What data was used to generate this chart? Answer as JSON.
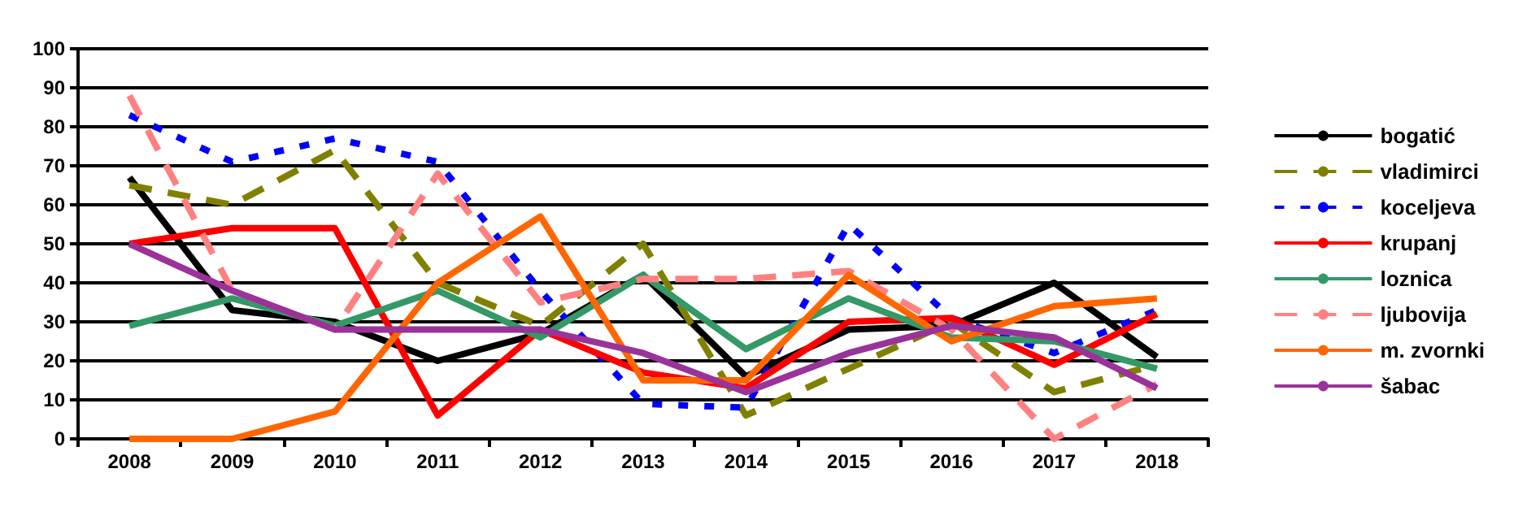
{
  "chart_data": {
    "type": "line",
    "categories": [
      "2008",
      "2009",
      "2010",
      "2011",
      "2012",
      "2013",
      "2014",
      "2015",
      "2016",
      "2017",
      "2018"
    ],
    "ylim": [
      0,
      100
    ],
    "yticks": [
      0,
      10,
      20,
      30,
      40,
      50,
      60,
      70,
      80,
      90,
      100
    ],
    "grid": "y",
    "legend": "right",
    "marker": "none",
    "series": [
      {
        "name": "bogatić",
        "color": "#000000",
        "line_style": "solid",
        "values": [
          67,
          33,
          30,
          20,
          27,
          42,
          16,
          28,
          29,
          40,
          21
        ]
      },
      {
        "name": "vladimirci",
        "color": "#808000",
        "line_style": "dashed",
        "values": [
          65,
          60,
          74,
          40,
          29,
          50,
          6,
          18,
          30,
          12,
          19
        ]
      },
      {
        "name": "koceljeva",
        "color": "#0000ff",
        "line_style": "dotted",
        "values": [
          83,
          71,
          77,
          71,
          38,
          9,
          8,
          55,
          31,
          22,
          33
        ]
      },
      {
        "name": "krupanj",
        "color": "#ff0000",
        "line_style": "solid",
        "values": [
          50,
          54,
          54,
          6,
          28,
          17,
          13,
          30,
          31,
          19,
          32
        ]
      },
      {
        "name": "loznica",
        "color": "#339966",
        "line_style": "solid",
        "values": [
          29,
          36,
          29,
          38,
          26,
          42,
          23,
          36,
          26,
          25,
          18
        ]
      },
      {
        "name": "ljubovija",
        "color": "#ff8080",
        "line_style": "dashed",
        "values": [
          88,
          38,
          28,
          68,
          35,
          41,
          41,
          43,
          28,
          0,
          14
        ]
      },
      {
        "name": "m. zvornki",
        "color": "#ff6600",
        "line_style": "solid",
        "values": [
          0,
          0,
          7,
          40,
          57,
          15,
          15,
          42,
          25,
          34,
          36
        ]
      },
      {
        "name": "šabac",
        "color": "#993399",
        "line_style": "solid",
        "values": [
          50,
          38,
          28,
          28,
          28,
          22,
          12,
          22,
          29,
          26,
          13
        ]
      }
    ]
  }
}
